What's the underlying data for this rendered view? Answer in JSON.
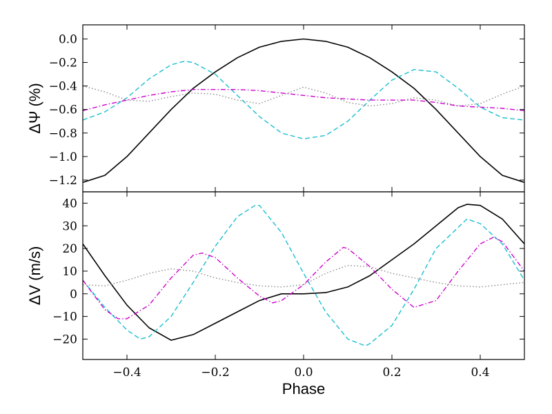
{
  "chart_data": [
    {
      "type": "line",
      "panel": "top",
      "ylabel": "ΔΨ (%)",
      "xlabel": "",
      "xlim": [
        -0.5,
        0.5
      ],
      "ylim": [
        -1.3,
        0.12
      ],
      "yticks": [
        0.0,
        -0.2,
        -0.4,
        -0.6,
        -0.8,
        -1.0,
        -1.2
      ],
      "ytick_labels": [
        "0.0",
        "−0.2",
        "−0.4",
        "−0.6",
        "−0.8",
        "−1.0",
        "−1.2"
      ],
      "series": [
        {
          "name": "solid",
          "color": "#000000",
          "style": "solid",
          "x": [
            -0.5,
            -0.45,
            -0.4,
            -0.35,
            -0.3,
            -0.25,
            -0.2,
            -0.15,
            -0.1,
            -0.05,
            0.0,
            0.05,
            0.1,
            0.15,
            0.2,
            0.25,
            0.3,
            0.35,
            0.4,
            0.45,
            0.5
          ],
          "y": [
            -1.22,
            -1.16,
            -1.0,
            -0.8,
            -0.6,
            -0.42,
            -0.28,
            -0.16,
            -0.07,
            -0.02,
            0.0,
            -0.02,
            -0.07,
            -0.16,
            -0.28,
            -0.42,
            -0.6,
            -0.8,
            -1.0,
            -1.16,
            -1.22
          ]
        },
        {
          "name": "dashed",
          "color": "#17becf",
          "style": "dashed",
          "x": [
            -0.5,
            -0.45,
            -0.4,
            -0.35,
            -0.3,
            -0.27,
            -0.25,
            -0.2,
            -0.15,
            -0.1,
            -0.05,
            0.0,
            0.05,
            0.1,
            0.15,
            0.2,
            0.25,
            0.3,
            0.35,
            0.4,
            0.45,
            0.5
          ],
          "y": [
            -0.69,
            -0.62,
            -0.5,
            -0.34,
            -0.22,
            -0.19,
            -0.2,
            -0.3,
            -0.48,
            -0.66,
            -0.8,
            -0.85,
            -0.82,
            -0.7,
            -0.52,
            -0.35,
            -0.26,
            -0.28,
            -0.42,
            -0.58,
            -0.67,
            -0.69
          ]
        },
        {
          "name": "dotted",
          "color": "#888888",
          "style": "dotted",
          "x": [
            -0.5,
            -0.45,
            -0.4,
            -0.35,
            -0.3,
            -0.25,
            -0.2,
            -0.15,
            -0.1,
            -0.05,
            0.0,
            0.05,
            0.1,
            0.15,
            0.2,
            0.25,
            0.3,
            0.35,
            0.4,
            0.45,
            0.5
          ],
          "y": [
            -0.4,
            -0.45,
            -0.52,
            -0.53,
            -0.49,
            -0.46,
            -0.47,
            -0.52,
            -0.55,
            -0.48,
            -0.41,
            -0.46,
            -0.54,
            -0.57,
            -0.55,
            -0.5,
            -0.52,
            -0.57,
            -0.55,
            -0.47,
            -0.4
          ]
        },
        {
          "name": "dashdot",
          "color": "#cc00cc",
          "style": "dashdot",
          "x": [
            -0.5,
            -0.45,
            -0.4,
            -0.35,
            -0.3,
            -0.25,
            -0.2,
            -0.15,
            -0.1,
            -0.05,
            0.0,
            0.05,
            0.1,
            0.15,
            0.2,
            0.25,
            0.3,
            0.35,
            0.4,
            0.45,
            0.5
          ],
          "y": [
            -0.61,
            -0.56,
            -0.52,
            -0.48,
            -0.45,
            -0.43,
            -0.43,
            -0.43,
            -0.44,
            -0.46,
            -0.48,
            -0.5,
            -0.51,
            -0.52,
            -0.52,
            -0.52,
            -0.54,
            -0.57,
            -0.58,
            -0.59,
            -0.61
          ]
        }
      ]
    },
    {
      "type": "line",
      "panel": "bottom",
      "ylabel": "ΔV (m/s)",
      "xlabel": "Phase",
      "xlim": [
        -0.5,
        0.5
      ],
      "ylim": [
        -29,
        45
      ],
      "yticks": [
        40,
        30,
        20,
        10,
        0,
        -10,
        -20
      ],
      "ytick_labels": [
        "40",
        "30",
        "20",
        "10",
        "0",
        "−10",
        "−20"
      ],
      "xticks": [
        -0.4,
        -0.2,
        0.0,
        0.2,
        0.4
      ],
      "xtick_labels": [
        "−0.4",
        "−0.2",
        "0.0",
        "0.2",
        "0.4"
      ],
      "series": [
        {
          "name": "solid",
          "color": "#000000",
          "style": "solid",
          "x": [
            -0.5,
            -0.45,
            -0.4,
            -0.35,
            -0.3,
            -0.25,
            -0.2,
            -0.15,
            -0.1,
            -0.05,
            0.0,
            0.05,
            0.1,
            0.15,
            0.2,
            0.25,
            0.3,
            0.35,
            0.37,
            0.4,
            0.45,
            0.5
          ],
          "y": [
            22,
            8,
            -5,
            -15,
            -20.5,
            -18,
            -13,
            -8,
            -3,
            0,
            0,
            0.5,
            3,
            8,
            15,
            22,
            30,
            38,
            39.5,
            39,
            33,
            22
          ]
        },
        {
          "name": "dashed",
          "color": "#17becf",
          "style": "dashed",
          "x": [
            -0.5,
            -0.45,
            -0.4,
            -0.37,
            -0.35,
            -0.3,
            -0.25,
            -0.2,
            -0.15,
            -0.11,
            -0.1,
            -0.05,
            0.0,
            0.05,
            0.1,
            0.14,
            0.15,
            0.2,
            0.25,
            0.3,
            0.37,
            0.4,
            0.45,
            0.5
          ],
          "y": [
            6,
            -6,
            -16,
            -20,
            -19,
            -10,
            5,
            21,
            34,
            39,
            39,
            27,
            9,
            -8,
            -20,
            -23,
            -22,
            -14,
            2,
            20,
            33,
            31,
            22,
            6
          ]
        },
        {
          "name": "dotted",
          "color": "#888888",
          "style": "dotted",
          "x": [
            -0.5,
            -0.45,
            -0.4,
            -0.35,
            -0.3,
            -0.25,
            -0.2,
            -0.15,
            -0.1,
            -0.05,
            0.0,
            0.05,
            0.1,
            0.15,
            0.2,
            0.25,
            0.3,
            0.35,
            0.4,
            0.45,
            0.5
          ],
          "y": [
            4,
            3.5,
            6,
            9,
            11,
            10,
            7,
            5,
            3.5,
            3,
            4,
            9,
            12.5,
            12,
            9,
            7,
            5,
            3.5,
            3,
            4,
            5
          ]
        },
        {
          "name": "dashdot",
          "color": "#cc00cc",
          "style": "dashdot",
          "x": [
            -0.5,
            -0.45,
            -0.42,
            -0.4,
            -0.35,
            -0.3,
            -0.25,
            -0.23,
            -0.2,
            -0.15,
            -0.1,
            -0.07,
            -0.05,
            0.0,
            0.05,
            0.09,
            0.1,
            0.15,
            0.2,
            0.25,
            0.3,
            0.35,
            0.4,
            0.43,
            0.45,
            0.5
          ],
          "y": [
            6,
            -7,
            -11,
            -11,
            -5,
            7,
            17,
            18,
            16,
            7,
            -1,
            -4,
            -3,
            4,
            14,
            20.5,
            20,
            12,
            2,
            -6,
            -3,
            10,
            22,
            25,
            23,
            10
          ]
        }
      ]
    }
  ]
}
